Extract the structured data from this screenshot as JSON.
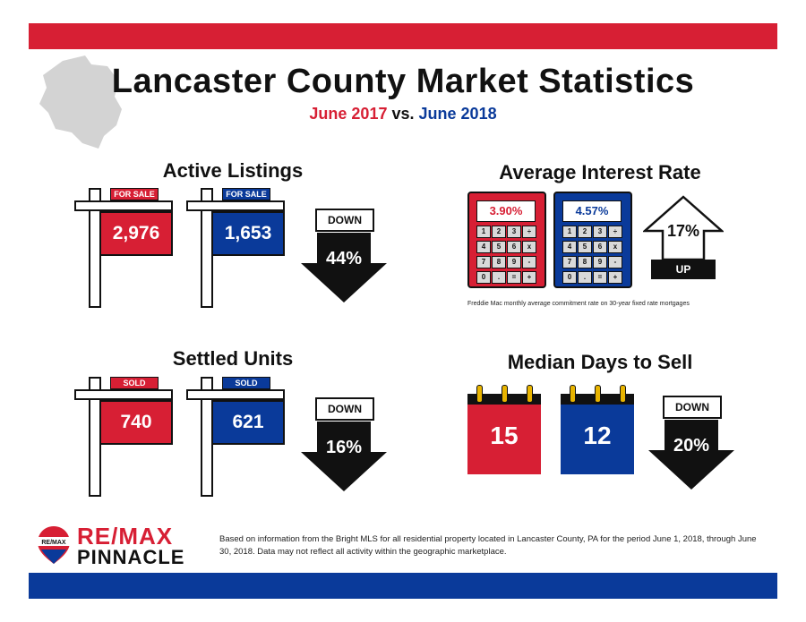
{
  "header": {
    "title": "Lancaster County Market Statistics",
    "subtitle_year1": "June 2017",
    "subtitle_vs": "vs.",
    "subtitle_year2": "June 2018"
  },
  "active_listings": {
    "title": "Active Listings",
    "tag": "FOR SALE",
    "value_2017": "2,976",
    "value_2018": "1,653",
    "direction": "DOWN",
    "change": "44%"
  },
  "interest_rate": {
    "title": "Average Interest Rate",
    "value_2017": "3.90%",
    "value_2018": "4.57%",
    "change": "17%",
    "direction": "UP",
    "keys": [
      "1",
      "2",
      "3",
      "÷",
      "4",
      "5",
      "6",
      "x",
      "7",
      "8",
      "9",
      "-",
      "0",
      ".",
      "=",
      "+"
    ],
    "footnote": "Freddie Mac monthly average commitment rate on 30-year fixed rate mortgages"
  },
  "settled_units": {
    "title": "Settled Units",
    "tag": "SOLD",
    "value_2017": "740",
    "value_2018": "621",
    "direction": "DOWN",
    "change": "16%"
  },
  "days_to_sell": {
    "title": "Median Days to Sell",
    "value_2017": "15",
    "value_2018": "12",
    "direction": "DOWN",
    "change": "20%"
  },
  "footer": {
    "logo_line1": "RE/MAX",
    "logo_line2": "PINNACLE",
    "balloon_text": "RE/MAX",
    "disclaimer": "Based on information from the Bright MLS for all residential property located in Lancaster County, PA for the period June 1, 2018, through June 30, 2018.  Data may not reflect all activity within the geographic marketplace."
  },
  "colors": {
    "red": "#d71f34",
    "blue": "#0a3a9a",
    "ring": "#e8b400"
  }
}
